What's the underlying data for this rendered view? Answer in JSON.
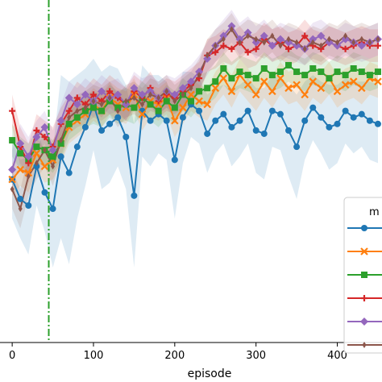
{
  "chart_data": {
    "type": "line",
    "title": "",
    "xlabel": "episode",
    "ylabel": "",
    "xlim": [
      -15,
      455
    ],
    "ylim": [
      -0.05,
      1.0
    ],
    "xticks": [
      0,
      100,
      200,
      300,
      400
    ],
    "xtick_labels": [
      "0",
      "100",
      "200",
      "300",
      "400"
    ],
    "grid": false,
    "legend": {
      "title": "m",
      "placement": "right",
      "entries": [
        {
          "color": "#1f77b4",
          "marker": "circle"
        },
        {
          "color": "#ff7f0e",
          "marker": "x"
        },
        {
          "color": "#2ca02c",
          "marker": "square"
        },
        {
          "color": "#d62728",
          "marker": "plus"
        },
        {
          "color": "#9467bd",
          "marker": "diamond"
        },
        {
          "color": "#8c564b",
          "marker": "thin-diamond"
        }
      ]
    },
    "vline": {
      "x": 45,
      "color": "#2ca02c",
      "style": "dash-dot"
    },
    "x": [
      0,
      10,
      20,
      30,
      40,
      50,
      60,
      70,
      80,
      90,
      100,
      110,
      120,
      130,
      140,
      150,
      160,
      170,
      180,
      190,
      200,
      210,
      220,
      230,
      240,
      250,
      260,
      270,
      280,
      290,
      300,
      310,
      320,
      330,
      340,
      350,
      360,
      370,
      380,
      390,
      400,
      410,
      420,
      430,
      440,
      450
    ],
    "series": [
      {
        "color": "#1f77b4",
        "marker": "circle",
        "values": [
          0.45,
          0.39,
          0.37,
          0.49,
          0.41,
          0.36,
          0.52,
          0.47,
          0.55,
          0.61,
          0.68,
          0.6,
          0.62,
          0.64,
          0.58,
          0.4,
          0.66,
          0.63,
          0.65,
          0.63,
          0.51,
          0.64,
          0.68,
          0.66,
          0.59,
          0.63,
          0.65,
          0.61,
          0.63,
          0.66,
          0.6,
          0.59,
          0.66,
          0.65,
          0.6,
          0.55,
          0.63,
          0.67,
          0.64,
          0.61,
          0.62,
          0.66,
          0.64,
          0.65,
          0.63,
          0.62
        ],
        "band": [
          0.12,
          0.12,
          0.15,
          0.12,
          0.12,
          0.18,
          0.25,
          0.28,
          0.22,
          0.18,
          0.14,
          0.18,
          0.18,
          0.15,
          0.16,
          0.22,
          0.14,
          0.14,
          0.12,
          0.12,
          0.18,
          0.14,
          0.1,
          0.1,
          0.12,
          0.1,
          0.09,
          0.12,
          0.11,
          0.1,
          0.13,
          0.14,
          0.11,
          0.11,
          0.14,
          0.16,
          0.12,
          0.1,
          0.11,
          0.13,
          0.12,
          0.1,
          0.11,
          0.1,
          0.12,
          0.12
        ]
      },
      {
        "color": "#ff7f0e",
        "marker": "x",
        "values": [
          0.45,
          0.48,
          0.47,
          0.53,
          0.49,
          0.51,
          0.56,
          0.61,
          0.63,
          0.65,
          0.68,
          0.66,
          0.7,
          0.68,
          0.67,
          0.71,
          0.65,
          0.69,
          0.68,
          0.7,
          0.63,
          0.67,
          0.71,
          0.69,
          0.68,
          0.73,
          0.76,
          0.72,
          0.77,
          0.74,
          0.71,
          0.75,
          0.72,
          0.76,
          0.73,
          0.74,
          0.71,
          0.75,
          0.73,
          0.76,
          0.72,
          0.74,
          0.75,
          0.73,
          0.76,
          0.75
        ],
        "band": [
          0.05,
          0.05,
          0.06,
          0.05,
          0.05,
          0.06,
          0.06,
          0.05,
          0.05,
          0.05,
          0.05,
          0.05,
          0.05,
          0.05,
          0.05,
          0.05,
          0.05,
          0.05,
          0.05,
          0.05,
          0.05,
          0.05,
          0.05,
          0.05,
          0.05,
          0.05,
          0.05,
          0.05,
          0.05,
          0.05,
          0.05,
          0.05,
          0.05,
          0.05,
          0.05,
          0.05,
          0.05,
          0.05,
          0.05,
          0.05,
          0.05,
          0.05,
          0.05,
          0.05,
          0.05,
          0.05
        ]
      },
      {
        "color": "#2ca02c",
        "marker": "square",
        "values": [
          0.57,
          0.53,
          0.51,
          0.55,
          0.54,
          0.52,
          0.56,
          0.62,
          0.64,
          0.66,
          0.67,
          0.66,
          0.69,
          0.67,
          0.68,
          0.67,
          0.7,
          0.68,
          0.66,
          0.69,
          0.67,
          0.71,
          0.69,
          0.72,
          0.73,
          0.75,
          0.79,
          0.76,
          0.78,
          0.77,
          0.76,
          0.79,
          0.77,
          0.78,
          0.8,
          0.78,
          0.77,
          0.79,
          0.78,
          0.76,
          0.78,
          0.77,
          0.79,
          0.78,
          0.77,
          0.78
        ],
        "band": [
          0.05,
          0.05,
          0.05,
          0.05,
          0.05,
          0.05,
          0.05,
          0.05,
          0.05,
          0.05,
          0.05,
          0.05,
          0.05,
          0.05,
          0.05,
          0.05,
          0.05,
          0.05,
          0.05,
          0.05,
          0.05,
          0.05,
          0.05,
          0.05,
          0.05,
          0.05,
          0.05,
          0.05,
          0.05,
          0.05,
          0.05,
          0.05,
          0.05,
          0.05,
          0.05,
          0.05,
          0.05,
          0.05,
          0.05,
          0.05,
          0.05,
          0.05,
          0.05,
          0.05,
          0.05,
          0.05
        ]
      },
      {
        "color": "#d62728",
        "marker": "plus",
        "values": [
          0.66,
          0.55,
          0.5,
          0.6,
          0.58,
          0.55,
          0.62,
          0.66,
          0.7,
          0.68,
          0.71,
          0.69,
          0.72,
          0.7,
          0.68,
          0.72,
          0.7,
          0.73,
          0.69,
          0.71,
          0.7,
          0.72,
          0.74,
          0.76,
          0.83,
          0.84,
          0.86,
          0.85,
          0.87,
          0.84,
          0.85,
          0.88,
          0.86,
          0.87,
          0.85,
          0.86,
          0.89,
          0.86,
          0.85,
          0.87,
          0.86,
          0.85,
          0.86,
          0.87,
          0.86,
          0.86
        ],
        "band": [
          0.05,
          0.06,
          0.06,
          0.05,
          0.05,
          0.06,
          0.05,
          0.05,
          0.05,
          0.05,
          0.05,
          0.05,
          0.05,
          0.05,
          0.05,
          0.05,
          0.05,
          0.05,
          0.05,
          0.05,
          0.05,
          0.05,
          0.05,
          0.05,
          0.05,
          0.05,
          0.05,
          0.05,
          0.05,
          0.05,
          0.05,
          0.05,
          0.05,
          0.05,
          0.05,
          0.05,
          0.05,
          0.05,
          0.05,
          0.05,
          0.05,
          0.05,
          0.05,
          0.05,
          0.05,
          0.05
        ]
      },
      {
        "color": "#9467bd",
        "marker": "diamond",
        "values": [
          0.48,
          0.56,
          0.52,
          0.58,
          0.61,
          0.54,
          0.63,
          0.7,
          0.68,
          0.71,
          0.69,
          0.72,
          0.7,
          0.71,
          0.68,
          0.73,
          0.71,
          0.72,
          0.7,
          0.72,
          0.71,
          0.73,
          0.75,
          0.78,
          0.82,
          0.86,
          0.89,
          0.92,
          0.88,
          0.9,
          0.87,
          0.89,
          0.86,
          0.88,
          0.87,
          0.86,
          0.85,
          0.88,
          0.89,
          0.87,
          0.86,
          0.88,
          0.87,
          0.86,
          0.87,
          0.88
        ],
        "band": [
          0.06,
          0.06,
          0.06,
          0.05,
          0.05,
          0.06,
          0.05,
          0.05,
          0.05,
          0.05,
          0.05,
          0.05,
          0.05,
          0.05,
          0.05,
          0.05,
          0.05,
          0.05,
          0.05,
          0.05,
          0.05,
          0.05,
          0.05,
          0.05,
          0.05,
          0.05,
          0.05,
          0.05,
          0.05,
          0.05,
          0.05,
          0.05,
          0.05,
          0.05,
          0.05,
          0.05,
          0.05,
          0.05,
          0.05,
          0.05,
          0.05,
          0.05,
          0.05,
          0.05,
          0.05,
          0.05
        ]
      },
      {
        "color": "#8c564b",
        "marker": "thin-diamond",
        "values": [
          0.42,
          0.36,
          0.46,
          0.5,
          0.54,
          0.49,
          0.57,
          0.64,
          0.66,
          0.67,
          0.69,
          0.68,
          0.7,
          0.66,
          0.69,
          0.7,
          0.68,
          0.71,
          0.7,
          0.72,
          0.69,
          0.71,
          0.73,
          0.77,
          0.83,
          0.86,
          0.88,
          0.91,
          0.87,
          0.89,
          0.88,
          0.87,
          0.89,
          0.86,
          0.88,
          0.87,
          0.85,
          0.87,
          0.86,
          0.88,
          0.87,
          0.89,
          0.87,
          0.88,
          0.87,
          0.88
        ],
        "band": [
          0.06,
          0.06,
          0.06,
          0.05,
          0.05,
          0.06,
          0.05,
          0.05,
          0.05,
          0.05,
          0.05,
          0.05,
          0.05,
          0.05,
          0.05,
          0.05,
          0.05,
          0.05,
          0.05,
          0.05,
          0.05,
          0.05,
          0.05,
          0.05,
          0.05,
          0.05,
          0.05,
          0.05,
          0.05,
          0.05,
          0.05,
          0.05,
          0.05,
          0.05,
          0.05,
          0.05,
          0.05,
          0.05,
          0.05,
          0.05,
          0.05,
          0.05,
          0.05,
          0.05,
          0.05,
          0.05
        ]
      }
    ]
  }
}
